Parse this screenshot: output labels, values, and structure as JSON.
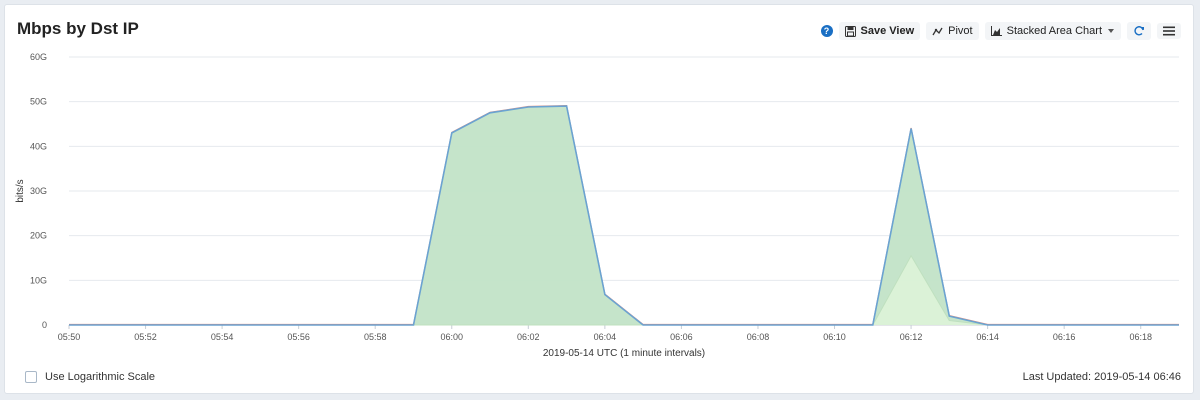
{
  "panel": {
    "title": "Mbps by Dst IP"
  },
  "toolbar": {
    "help_icon": "question-circle-icon",
    "help_glyph": "?",
    "save_label": "Save View",
    "pivot_label": "Pivot",
    "chart_type_label": "Stacked Area Chart",
    "refresh_icon": "refresh-icon",
    "menu_icon": "hamburger-menu-icon"
  },
  "footer": {
    "log_scale_label": "Use Logarithmic Scale",
    "last_updated_prefix": "Last Updated:",
    "last_updated_value": "2019-05-14 06:46"
  },
  "colors": {
    "series1_line": "#6aa3d2",
    "series1_fill": "#c2e3c7",
    "series2_fill": "#d9f1d5",
    "series3_line": "#e08a7a",
    "grid": "#e6e9ee"
  },
  "chart_data": {
    "type": "area",
    "stacked": true,
    "xlabel": "2019-05-14 UTC (1 minute intervals)",
    "ylabel": "bits/s",
    "ylim": [
      0,
      60
    ],
    "yticks": [
      "0",
      "10G",
      "20G",
      "30G",
      "40G",
      "50G",
      "60G"
    ],
    "x": [
      "05:50",
      "05:51",
      "05:52",
      "05:53",
      "05:54",
      "05:55",
      "05:56",
      "05:57",
      "05:58",
      "05:59",
      "06:00",
      "06:01",
      "06:02",
      "06:03",
      "06:04",
      "06:05",
      "06:06",
      "06:07",
      "06:08",
      "06:09",
      "06:10",
      "06:11",
      "06:12",
      "06:13",
      "06:14",
      "06:15",
      "06:16",
      "06:17",
      "06:18",
      "06:19"
    ],
    "xticks": [
      "05:50",
      "05:52",
      "05:54",
      "05:56",
      "05:58",
      "06:00",
      "06:02",
      "06:04",
      "06:06",
      "06:08",
      "06:10",
      "06:12",
      "06:14",
      "06:16",
      "06:18"
    ],
    "grid": true,
    "series": [
      {
        "values": [
          0,
          0,
          0,
          0,
          0,
          0,
          0,
          0,
          0,
          0,
          0,
          0,
          0,
          0,
          0,
          0,
          0,
          0,
          0,
          0,
          0,
          0,
          15.5,
          1,
          0,
          0,
          0,
          0,
          0,
          0
        ]
      },
      {
        "values": [
          0,
          0,
          0,
          0,
          0,
          0,
          0,
          0,
          0,
          0,
          43,
          47.5,
          48.8,
          49,
          6.8,
          0,
          0,
          0,
          0,
          0,
          0,
          0,
          28.5,
          1,
          0,
          0,
          0,
          0,
          0,
          0
        ]
      },
      {
        "values": [
          0,
          0,
          0,
          0,
          0,
          0,
          0,
          0,
          0,
          0,
          0,
          0,
          0,
          0,
          0,
          0,
          0,
          0,
          0,
          0,
          0,
          0,
          0,
          0,
          0,
          0,
          0,
          0,
          0,
          0
        ]
      }
    ]
  }
}
